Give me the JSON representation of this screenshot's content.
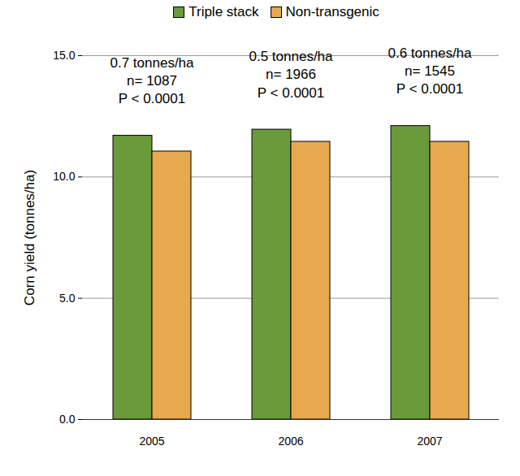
{
  "chart_data": {
    "type": "bar",
    "categories": [
      "2005",
      "2006",
      "2007"
    ],
    "series": [
      {
        "name": "Triple stack",
        "color": "#6a9a3a",
        "values": [
          11.7,
          11.95,
          12.1
        ]
      },
      {
        "name": "Non-transgenic",
        "color": "#e8a84e",
        "values": [
          11.05,
          11.45,
          11.45
        ]
      }
    ],
    "y_label": "Corn yield (tonnes/ha)",
    "ylim": [
      0,
      15
    ],
    "yticks": [
      {
        "value": 0,
        "label": "0.0"
      },
      {
        "value": 5,
        "label": "5.0"
      },
      {
        "value": 10,
        "label": "10.0"
      },
      {
        "value": 15,
        "label": "15.0"
      }
    ],
    "grid": true,
    "legend": "top",
    "annotations": [
      [
        "0.7 tonnes/ha",
        "n= 1087",
        "P < 0.0001"
      ],
      [
        "0.5 tonnes/ha",
        "n= 1966",
        "P < 0.0001"
      ],
      [
        "0.6 tonnes/ha",
        "n= 1545",
        "P < 0.0001"
      ]
    ]
  }
}
